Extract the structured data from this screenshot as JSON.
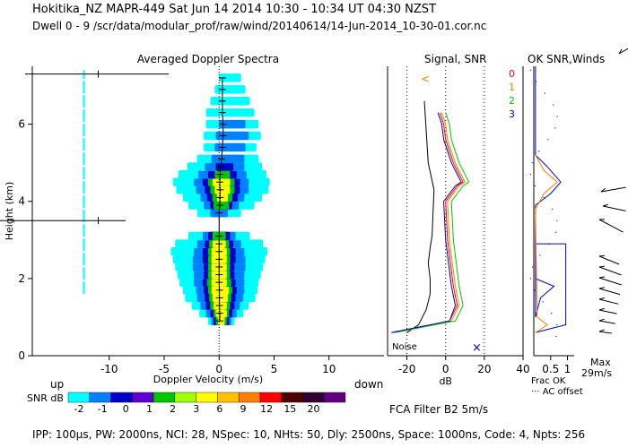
{
  "header": {
    "line1": "Hokitika_NZ   MAPR-449   Sat Jun 14 2014 10:30  -  10:34 UT 04:30 NZST",
    "line2": "Dwell   0  -   9    /scr/data/modular_prof/raw/wind/20140614/14-Jun-2014_10-30-01.cor.nc"
  },
  "footer": {
    "line": "IPP: 100µs,  PW: 2000ns,  NCI:  28,  NSpec: 10, NHts: 50,  Dly: 2500ns,  Space: 1000ns,  Code: 4,  Npts: 256",
    "fca": "FCA Filter B2   5m/s"
  },
  "colors": {
    "snr_scale": [
      "#00ffff",
      "#0080ff",
      "#0000c8",
      "#6000d0",
      "#00c800",
      "#a0ff00",
      "#ffff00",
      "#ffc000",
      "#ff8000",
      "#ff0000",
      "#500000",
      "#300030",
      "#600080"
    ],
    "series": [
      "#ff0000",
      "#ff8000",
      "#00c800",
      "#0000c0"
    ]
  },
  "chart_data": [
    {
      "type": "heatmap",
      "title": "Averaged Doppler Spectra",
      "xlabel": "Doppler Velocity (m/s)",
      "ylabel": "Height (km)",
      "x_ticks": [
        "-10",
        "-5",
        "0",
        "5",
        "10"
      ],
      "y_ticks": [
        "0",
        "2",
        "4",
        "6"
      ],
      "xlim": [
        -17,
        15
      ],
      "ylim": [
        0,
        7.5
      ],
      "direction_labels": {
        "left": "up",
        "right": "down"
      },
      "colorbar": {
        "label": "SNR dB",
        "ticks": [
          "-2",
          "-1",
          "0",
          "1",
          "2",
          "3",
          "6",
          "9",
          "12",
          "15",
          "20"
        ]
      },
      "cut_lines_km": [
        7.3,
        3.5
      ],
      "rows": [
        {
          "h": 0.9,
          "c": 0.2,
          "w": [
            1.2,
            0.9,
            0.7,
            0.5,
            0.3
          ]
        },
        {
          "h": 1.1,
          "c": 0.2,
          "w": [
            2.0,
            1.4,
            1.0,
            0.7,
            0.5
          ]
        },
        {
          "h": 1.3,
          "c": 0.1,
          "w": [
            2.6,
            1.8,
            1.3,
            0.9,
            0.6
          ]
        },
        {
          "h": 1.5,
          "c": 0.1,
          "w": [
            3.2,
            2.1,
            1.4,
            1.0,
            0.7
          ]
        },
        {
          "h": 1.7,
          "c": 0.1,
          "w": [
            3.4,
            2.2,
            1.5,
            1.1,
            0.8
          ]
        },
        {
          "h": 1.9,
          "c": 0.0,
          "w": [
            3.6,
            2.3,
            1.5,
            1.1,
            0.7
          ]
        },
        {
          "h": 2.1,
          "c": 0.0,
          "w": [
            3.8,
            2.3,
            1.4,
            1.0,
            0.7
          ]
        },
        {
          "h": 2.3,
          "c": 0.0,
          "w": [
            4.0,
            2.4,
            1.4,
            1.0,
            0.7
          ]
        },
        {
          "h": 2.5,
          "c": 0.0,
          "w": [
            4.2,
            2.4,
            1.5,
            1.0,
            0.7
          ]
        },
        {
          "h": 2.7,
          "c": 0.0,
          "w": [
            4.4,
            2.3,
            1.5,
            1.0,
            0.7
          ]
        },
        {
          "h": 2.9,
          "c": 0.0,
          "w": [
            4.0,
            2.0,
            1.3,
            0.9,
            0.6
          ]
        },
        {
          "h": 3.1,
          "c": 0.0,
          "w": [
            2.8,
            1.5,
            1.0,
            0.6,
            0
          ]
        },
        {
          "h": 3.7,
          "c": 0.0,
          "w": [
            2.0,
            0.8,
            0,
            0,
            0
          ]
        },
        {
          "h": 3.9,
          "c": 0.2,
          "w": [
            3.0,
            1.6,
            1.0,
            0.7,
            0
          ]
        },
        {
          "h": 4.1,
          "c": 0.3,
          "w": [
            3.6,
            2.0,
            1.4,
            0.9,
            0.5
          ]
        },
        {
          "h": 4.3,
          "c": 0.3,
          "w": [
            4.2,
            2.4,
            1.6,
            1.1,
            0.7
          ]
        },
        {
          "h": 4.5,
          "c": 0.2,
          "w": [
            4.4,
            2.5,
            1.7,
            1.2,
            0.8
          ]
        },
        {
          "h": 4.7,
          "c": 0.3,
          "w": [
            4.0,
            2.2,
            1.3,
            0.7,
            0
          ]
        },
        {
          "h": 4.9,
          "c": 0.5,
          "w": [
            3.4,
            1.8,
            0.8,
            0,
            0
          ]
        },
        {
          "h": 5.1,
          "c": 0.8,
          "w": [
            2.8,
            1.5,
            0,
            0,
            0
          ]
        },
        {
          "h": 5.4,
          "c": 1.0,
          "w": [
            2.4,
            1.4,
            0,
            0,
            0
          ]
        },
        {
          "h": 5.7,
          "c": 1.2,
          "w": [
            2.6,
            1.5,
            0,
            0,
            0
          ]
        },
        {
          "h": 6.0,
          "c": 1.2,
          "w": [
            2.4,
            1.2,
            0,
            0,
            0
          ]
        },
        {
          "h": 6.3,
          "c": 1.0,
          "w": [
            2.2,
            0,
            0,
            0,
            0
          ]
        },
        {
          "h": 6.6,
          "c": 1.0,
          "w": [
            1.8,
            0,
            0,
            0,
            0
          ]
        },
        {
          "h": 6.9,
          "c": 1.0,
          "w": [
            1.4,
            0,
            0,
            0,
            0
          ]
        },
        {
          "h": 7.2,
          "c": 1.0,
          "w": [
            1.0,
            0,
            0,
            0,
            0
          ]
        }
      ],
      "noise_line": {
        "x": -12.3,
        "y_range": [
          1.6,
          7.4
        ]
      }
    },
    {
      "type": "line",
      "title": "Signal, SNR",
      "xlabel": "dB",
      "x_ticks": [
        "-20",
        "0",
        "20",
        "40"
      ],
      "xlim": [
        -30,
        40
      ],
      "ylim": [
        0,
        7.5
      ],
      "dotted_x": [
        -20,
        0,
        20
      ],
      "annotation": "Noise",
      "series": [
        {
          "name": "Signal",
          "x": [
            -20,
            -14,
            -10,
            -8,
            -8,
            -9,
            -8,
            -7,
            -6,
            -9,
            -10,
            -11
          ],
          "y": [
            0.6,
            0.8,
            1.2,
            1.6,
            2.0,
            2.4,
            2.8,
            3.1,
            4.3,
            5.0,
            5.8,
            6.6
          ]
        },
        {
          "name": "0",
          "x": [
            -28,
            -18,
            2,
            6,
            4,
            3,
            2,
            1,
            0,
            6,
            9,
            4,
            0,
            -1,
            -3
          ],
          "y": [
            0.6,
            0.7,
            0.9,
            1.3,
            1.8,
            2.2,
            2.6,
            3.0,
            4.0,
            4.4,
            4.5,
            5.0,
            5.6,
            6.0,
            6.3
          ]
        },
        {
          "name": "1",
          "x": [
            -27,
            -17,
            3,
            7,
            5,
            4,
            3,
            2,
            1,
            7,
            10,
            5,
            1,
            0,
            -2
          ],
          "y": [
            0.6,
            0.7,
            0.9,
            1.3,
            1.8,
            2.2,
            2.6,
            3.0,
            4.0,
            4.4,
            4.5,
            5.0,
            5.6,
            6.0,
            6.3
          ]
        },
        {
          "name": "2",
          "x": [
            -26,
            -16,
            5,
            9,
            7,
            6,
            5,
            4,
            3,
            9,
            12,
            7,
            3,
            2,
            0
          ],
          "y": [
            0.6,
            0.7,
            0.9,
            1.3,
            1.8,
            2.2,
            2.6,
            3.0,
            4.0,
            4.4,
            4.5,
            5.0,
            5.6,
            6.0,
            6.3
          ]
        },
        {
          "name": "3",
          "x": [
            -28,
            -18,
            2,
            5,
            3,
            2,
            1,
            0,
            -1,
            5,
            8,
            3,
            -1,
            -2,
            -4
          ],
          "y": [
            0.6,
            0.7,
            0.9,
            1.3,
            1.8,
            2.2,
            2.6,
            3.0,
            4.0,
            4.4,
            4.5,
            5.0,
            5.6,
            6.0,
            6.3
          ]
        }
      ]
    },
    {
      "type": "line",
      "title": "OK SNR,Winds",
      "legend": [
        "0",
        "1",
        "2",
        "3"
      ],
      "x_ticks": [
        "0.5",
        "1"
      ],
      "xlim": [
        0,
        1.2
      ],
      "ylim": [
        0,
        7.5
      ],
      "footer_labels": [
        "Frac OK",
        "··· AC offset"
      ],
      "series": [
        {
          "name": "Frac OK",
          "x": [
            0.05,
            0.95,
            0.95,
            0.05,
            0.05,
            0.6,
            0.2,
            0.05,
            0.05,
            0.5,
            0.8,
            0.4,
            0.05,
            0.05
          ],
          "y": [
            0.6,
            0.8,
            2.9,
            2.9,
            2.0,
            1.8,
            1.5,
            1.0,
            3.9,
            4.2,
            4.5,
            4.9,
            5.2,
            7.5
          ]
        },
        {
          "name": "0",
          "x": [
            0.05,
            0.4,
            0.1,
            0.05,
            0.3,
            0.7,
            0.3,
            0.05
          ],
          "y": [
            0.6,
            0.8,
            1.0,
            3.8,
            4.2,
            4.5,
            4.8,
            5.2
          ]
        }
      ],
      "wind_speed_max": "29m/s",
      "wind_label": "Max"
    }
  ]
}
